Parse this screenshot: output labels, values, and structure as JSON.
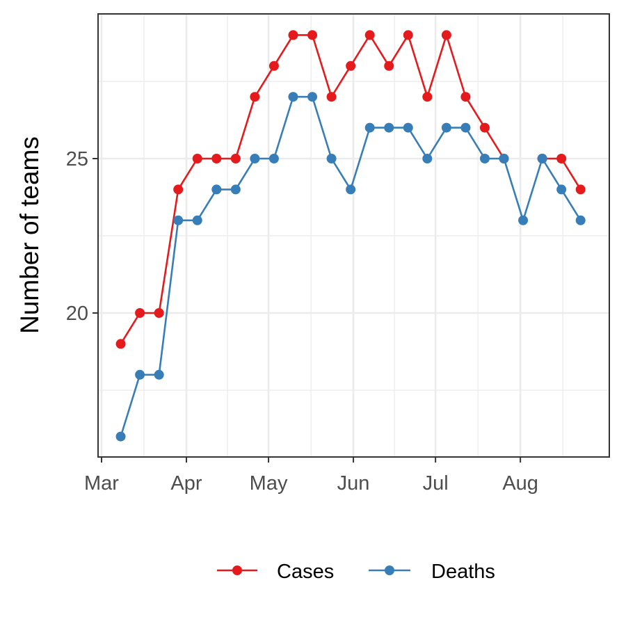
{
  "chart_data": {
    "type": "line",
    "title": "",
    "xlabel": "",
    "ylabel": "Number of teams",
    "x_tick_labels": [
      "Mar",
      "Apr",
      "May",
      "Jun",
      "Jul",
      "Aug"
    ],
    "y_ticks": [
      20,
      25
    ],
    "ylim": [
      15.6,
      29.5
    ],
    "grid": true,
    "legend_position": "bottom",
    "x": [
      "2020-03-08",
      "2020-03-15",
      "2020-03-22",
      "2020-03-29",
      "2020-04-05",
      "2020-04-12",
      "2020-04-19",
      "2020-04-26",
      "2020-05-03",
      "2020-05-10",
      "2020-05-17",
      "2020-05-24",
      "2020-05-31",
      "2020-06-07",
      "2020-06-14",
      "2020-06-21",
      "2020-06-28",
      "2020-07-05",
      "2020-07-12",
      "2020-07-19",
      "2020-07-26",
      "2020-08-02",
      "2020-08-09",
      "2020-08-16",
      "2020-08-23"
    ],
    "series": [
      {
        "name": "Cases",
        "color": "#e41a1c",
        "values": [
          19,
          20,
          20,
          24,
          25,
          25,
          25,
          27,
          28,
          29,
          29,
          27,
          28,
          29,
          28,
          29,
          27,
          29,
          27,
          26,
          25,
          null,
          25,
          25,
          24
        ]
      },
      {
        "name": "Deaths",
        "color": "#377eb8",
        "values": [
          16,
          18,
          18,
          23,
          23,
          24,
          24,
          25,
          25,
          27,
          27,
          25,
          24,
          26,
          26,
          26,
          25,
          26,
          26,
          25,
          25,
          23,
          25,
          24,
          23
        ]
      }
    ]
  }
}
